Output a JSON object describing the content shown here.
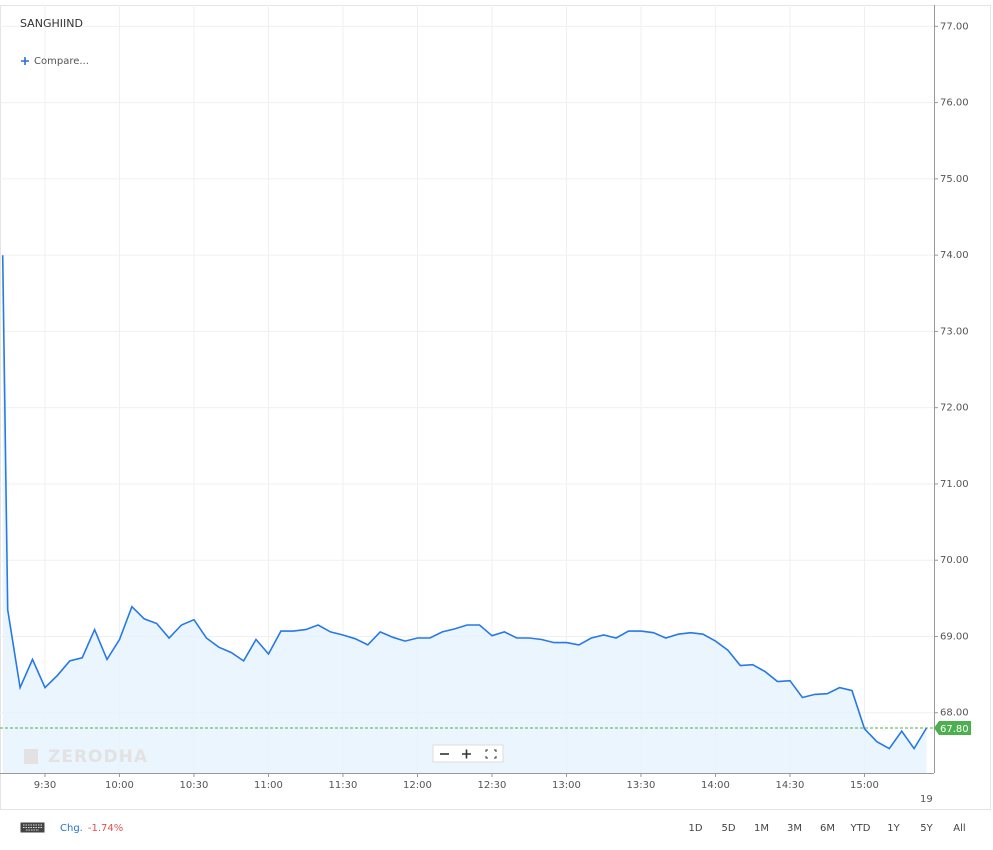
{
  "chart_data": {
    "type": "line",
    "title": "SANGHIIND",
    "compare_label": "Compare...",
    "watermark": "ZERODHA",
    "x": [
      553,
      555,
      560,
      565,
      570,
      575,
      580,
      585,
      590,
      595,
      600,
      605,
      610,
      615,
      620,
      625,
      630,
      635,
      640,
      645,
      650,
      655,
      660,
      665,
      670,
      675,
      680,
      685,
      690,
      695,
      700,
      705,
      710,
      715,
      720,
      725,
      730,
      735,
      740,
      745,
      750,
      755,
      760,
      765,
      770,
      775,
      780,
      785,
      790,
      795,
      800,
      805,
      810,
      815,
      820,
      825,
      830,
      835,
      840,
      845,
      850,
      855,
      860,
      865,
      870,
      875,
      880,
      885,
      890,
      895,
      900,
      905,
      910,
      915,
      920,
      925
    ],
    "values": [
      74.0,
      69.35,
      68.33,
      68.7,
      68.33,
      68.49,
      68.68,
      68.72,
      69.09,
      68.7,
      68.96,
      69.39,
      69.23,
      69.17,
      68.98,
      69.15,
      69.22,
      68.98,
      68.86,
      68.79,
      68.68,
      68.96,
      68.77,
      69.07,
      69.07,
      69.09,
      69.15,
      69.06,
      69.02,
      68.97,
      68.89,
      69.06,
      68.99,
      68.94,
      68.98,
      68.98,
      69.06,
      69.1,
      69.15,
      69.15,
      69.01,
      69.06,
      68.98,
      68.98,
      68.96,
      68.92,
      68.92,
      68.89,
      68.98,
      69.02,
      68.98,
      69.07,
      69.07,
      69.05,
      68.98,
      69.03,
      69.05,
      69.03,
      68.94,
      68.82,
      68.62,
      68.63,
      68.54,
      68.41,
      68.42,
      68.2,
      68.24,
      68.25,
      68.33,
      68.29,
      67.79,
      67.62,
      67.53,
      67.76,
      67.53,
      67.8
    ],
    "color": "#2679e8",
    "area_color": "#e6f2fc",
    "xlim": [
      552.7,
      928
    ],
    "ylim": [
      67.21,
      77.28
    ],
    "xticks": [
      {
        "value": 570,
        "label": "9:30"
      },
      {
        "value": 600,
        "label": "10:00"
      },
      {
        "value": 630,
        "label": "10:30"
      },
      {
        "value": 660,
        "label": "11:00"
      },
      {
        "value": 690,
        "label": "11:30"
      },
      {
        "value": 720,
        "label": "12:00"
      },
      {
        "value": 750,
        "label": "12:30"
      },
      {
        "value": 780,
        "label": "13:00"
      },
      {
        "value": 810,
        "label": "13:30"
      },
      {
        "value": 840,
        "label": "14:00"
      },
      {
        "value": 870,
        "label": "14:30"
      },
      {
        "value": 900,
        "label": "15:00"
      }
    ],
    "yticks": [
      {
        "value": 68,
        "label": "68.00"
      },
      {
        "value": 69,
        "label": "69.00"
      },
      {
        "value": 70,
        "label": "70.00"
      },
      {
        "value": 71,
        "label": "71.00"
      },
      {
        "value": 72,
        "label": "72.00"
      },
      {
        "value": 73,
        "label": "73.00"
      },
      {
        "value": 74,
        "label": "74.00"
      },
      {
        "value": 75,
        "label": "75.00"
      },
      {
        "value": 76,
        "label": "76.00"
      },
      {
        "value": 77,
        "label": "77.00"
      }
    ],
    "grid": true,
    "last_value": 67.8,
    "last_label": "67.80",
    "last_color": "#4caf50",
    "date_label": "19"
  },
  "toolbar": {
    "change_label": "Chg.",
    "change_value": "-1.74%",
    "periods": [
      "1D",
      "5D",
      "1M",
      "3M",
      "6M",
      "YTD",
      "1Y",
      "5Y",
      "All"
    ]
  }
}
